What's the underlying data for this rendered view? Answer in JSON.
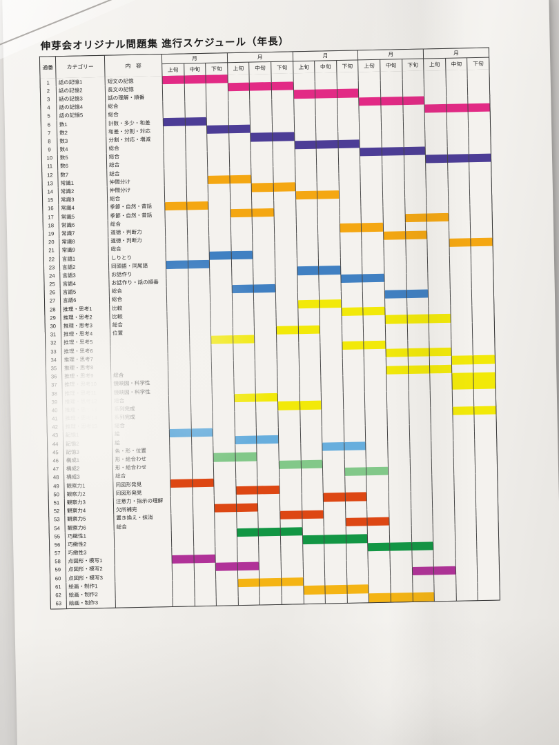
{
  "title": "伸芽会オリジナル問題集 進行スケジュール（年長）",
  "columns": {
    "no": "通番",
    "category": "カテゴリー",
    "content": "内　容"
  },
  "month_label": "月",
  "period_labels": [
    "上旬",
    "中旬",
    "下旬"
  ],
  "months_count": 5,
  "colors": {
    "story": "#e22a85",
    "number": "#4c3d96",
    "common": "#f4a712",
    "language": "#4080c2",
    "reasoning": "#f2e909",
    "memory_pic": "#67aedd",
    "composition": "#82c889",
    "observation": "#dd4713",
    "dexterity": "#129644",
    "dot_copy": "#b03298",
    "art": "#f4b414"
  },
  "rows": [
    {
      "no": 1,
      "category": "話の記憶1",
      "content": "短文の記憶",
      "group": "story",
      "start": 1,
      "end": 3
    },
    {
      "no": 2,
      "category": "話の記憶2",
      "content": "長文の記憶",
      "group": "story",
      "start": 4,
      "end": 6
    },
    {
      "no": 3,
      "category": "話の記憶3",
      "content": "話の理解・順番",
      "group": "story",
      "start": 7,
      "end": 9
    },
    {
      "no": 4,
      "category": "話の記憶4",
      "content": "総合",
      "group": "story",
      "start": 10,
      "end": 12
    },
    {
      "no": 5,
      "category": "話の記憶5",
      "content": "総合",
      "group": "story",
      "start": 13,
      "end": 15
    },
    {
      "no": 6,
      "category": "数1",
      "content": "計数・多少・和差",
      "group": "number",
      "start": 1,
      "end": 2
    },
    {
      "no": 7,
      "category": "数2",
      "content": "和差・分割・対応",
      "group": "number",
      "start": 3,
      "end": 4
    },
    {
      "no": 8,
      "category": "数3",
      "content": "分割・対応・増減",
      "group": "number",
      "start": 5,
      "end": 6
    },
    {
      "no": 9,
      "category": "数4",
      "content": "総合",
      "group": "number",
      "start": 7,
      "end": 9
    },
    {
      "no": 10,
      "category": "数5",
      "content": "総合",
      "group": "number",
      "start": 10,
      "end": 12
    },
    {
      "no": 11,
      "category": "数6",
      "content": "総合",
      "group": "number",
      "start": 13,
      "end": 15
    },
    {
      "no": 12,
      "category": "数7",
      "content": "総合",
      "group": "number",
      "start": 0,
      "end": 0
    },
    {
      "no": 13,
      "category": "常識1",
      "content": "仲間分け",
      "group": "common",
      "start": 3,
      "end": 4
    },
    {
      "no": 14,
      "category": "常識2",
      "content": "仲間分け",
      "group": "common",
      "start": 5,
      "end": 6
    },
    {
      "no": 15,
      "category": "常識3",
      "content": "総合",
      "group": "common",
      "start": 7,
      "end": 8
    },
    {
      "no": 16,
      "category": "常識4",
      "content": "季節・自然・昔話",
      "group": "common",
      "start": 1,
      "end": 2
    },
    {
      "no": 17,
      "category": "常識5",
      "content": "季節・自然・昔話",
      "group": "common",
      "start": 4,
      "end": 5
    },
    {
      "no": 18,
      "category": "常識6",
      "content": "総合",
      "group": "common",
      "start": 12,
      "end": 13
    },
    {
      "no": 19,
      "category": "常識7",
      "content": "道徳・判断力",
      "group": "common",
      "start": 9,
      "end": 10
    },
    {
      "no": 20,
      "category": "常識8",
      "content": "道徳・判断力",
      "group": "common",
      "start": 11,
      "end": 12
    },
    {
      "no": 21,
      "category": "常識9",
      "content": "総合",
      "group": "common",
      "start": 14,
      "end": 15
    },
    {
      "no": 22,
      "category": "言語1",
      "content": "しりとり",
      "group": "language",
      "start": 3,
      "end": 4
    },
    {
      "no": 23,
      "category": "言語2",
      "content": "同頭語・同尾語",
      "group": "language",
      "start": 1,
      "end": 2
    },
    {
      "no": 24,
      "category": "言語3",
      "content": "お話作り",
      "group": "language",
      "start": 7,
      "end": 8
    },
    {
      "no": 25,
      "category": "言語4",
      "content": "お話作り・話の順番",
      "group": "language",
      "start": 9,
      "end": 10
    },
    {
      "no": 26,
      "category": "言語5",
      "content": "総合",
      "group": "language",
      "start": 4,
      "end": 5
    },
    {
      "no": 27,
      "category": "言語6",
      "content": "総合",
      "group": "language",
      "start": 11,
      "end": 12
    },
    {
      "no": 28,
      "category": "推理・思考1",
      "content": "比較",
      "group": "reasoning",
      "start": 7,
      "end": 8
    },
    {
      "no": 29,
      "category": "推理・思考2",
      "content": "比較",
      "group": "reasoning",
      "start": 9,
      "end": 10
    },
    {
      "no": 30,
      "category": "推理・思考3",
      "content": "総合",
      "group": "reasoning",
      "start": 11,
      "end": 13
    },
    {
      "no": 31,
      "category": "推理・思考4",
      "content": "位置",
      "group": "reasoning",
      "start": 6,
      "end": 7
    },
    {
      "no": 32,
      "category": "推理・思考5",
      "content": "",
      "group": "reasoning",
      "start": 3,
      "end": 4
    },
    {
      "no": 33,
      "category": "推理・思考6",
      "content": "",
      "group": "reasoning",
      "start": 9,
      "end": 10
    },
    {
      "no": 34,
      "category": "推理・思考7",
      "content": "",
      "group": "reasoning",
      "start": 11,
      "end": 13
    },
    {
      "no": 35,
      "category": "推理・思考8",
      "content": "",
      "group": "reasoning",
      "start": 14,
      "end": 15
    },
    {
      "no": 36,
      "category": "推理・思考9",
      "content": "総合",
      "group": "reasoning",
      "start": 11,
      "end": 13
    },
    {
      "no": 37,
      "category": "推理・思考10",
      "content": "鏡映図・科学性",
      "group": "reasoning",
      "start": 14,
      "end": 15
    },
    {
      "no": 38,
      "category": "推理・思考11",
      "content": "鏡映図・科学性",
      "group": "reasoning",
      "start": 14,
      "end": 15
    },
    {
      "no": 39,
      "category": "推理・思考12",
      "content": "総合",
      "group": "reasoning",
      "start": 4,
      "end": 5
    },
    {
      "no": 40,
      "category": "推理・思考13",
      "content": "系列完成",
      "group": "reasoning",
      "start": 6,
      "end": 7
    },
    {
      "no": 41,
      "category": "推理・思考14",
      "content": "系列完成",
      "group": "reasoning",
      "start": 14,
      "end": 15
    },
    {
      "no": 42,
      "category": "推理・思考15",
      "content": "総合",
      "group": "reasoning",
      "start": 0,
      "end": 0
    },
    {
      "no": 43,
      "category": "記憶1",
      "content": "絵",
      "group": "memory_pic",
      "start": 1,
      "end": 2
    },
    {
      "no": 44,
      "category": "記憶2",
      "content": "絵",
      "group": "memory_pic",
      "start": 4,
      "end": 5
    },
    {
      "no": 45,
      "category": "記憶3",
      "content": "色・形・位置",
      "group": "memory_pic",
      "start": 8,
      "end": 9
    },
    {
      "no": 46,
      "category": "構成1",
      "content": "形・絵合わせ",
      "group": "composition",
      "start": 3,
      "end": 4
    },
    {
      "no": 47,
      "category": "構成2",
      "content": "形・絵合わせ",
      "group": "composition",
      "start": 6,
      "end": 7
    },
    {
      "no": 48,
      "category": "構成3",
      "content": "総合",
      "group": "composition",
      "start": 9,
      "end": 10
    },
    {
      "no": 49,
      "category": "観察力1",
      "content": "同図形発見",
      "group": "observation",
      "start": 1,
      "end": 2
    },
    {
      "no": 50,
      "category": "観察力2",
      "content": "同図形発見",
      "group": "observation",
      "start": 4,
      "end": 5
    },
    {
      "no": 51,
      "category": "観察力3",
      "content": "注意力・指示の理解",
      "group": "observation",
      "start": 8,
      "end": 9
    },
    {
      "no": 52,
      "category": "観察力4",
      "content": "欠所補完",
      "group": "observation",
      "start": 3,
      "end": 4
    },
    {
      "no": 53,
      "category": "観察力5",
      "content": "置き換え・抹消",
      "group": "observation",
      "start": 6,
      "end": 7
    },
    {
      "no": 54,
      "category": "観察力6",
      "content": "総合",
      "group": "observation",
      "start": 9,
      "end": 10
    },
    {
      "no": 55,
      "category": "巧緻性1",
      "content": "",
      "group": "dexterity",
      "start": 4,
      "end": 6
    },
    {
      "no": 56,
      "category": "巧緻性2",
      "content": "",
      "group": "dexterity",
      "start": 7,
      "end": 9
    },
    {
      "no": 57,
      "category": "巧緻性3",
      "content": "",
      "group": "dexterity",
      "start": 10,
      "end": 12
    },
    {
      "no": 58,
      "category": "点図形・模写1",
      "content": "",
      "group": "dot_copy",
      "start": 1,
      "end": 2
    },
    {
      "no": 59,
      "category": "点図形・模写2",
      "content": "",
      "group": "dot_copy",
      "start": 3,
      "end": 4
    },
    {
      "no": 60,
      "category": "点図形・模写3",
      "content": "",
      "group": "dot_copy",
      "start": 12,
      "end": 13
    },
    {
      "no": 61,
      "category": "絵画・制作1",
      "content": "",
      "group": "art",
      "start": 4,
      "end": 6
    },
    {
      "no": 62,
      "category": "絵画・制作2",
      "content": "",
      "group": "art",
      "start": 7,
      "end": 9
    },
    {
      "no": 63,
      "category": "絵画・制作3",
      "content": "",
      "group": "art",
      "start": 10,
      "end": 12
    }
  ]
}
